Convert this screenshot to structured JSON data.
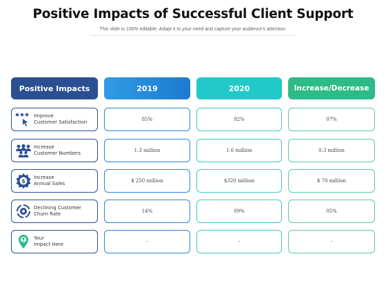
{
  "slide": {
    "title": "Positive Impacts of Successful Client Support",
    "subtitle": "This slide is 100% editable. Adapt it to your need and capture your audience's attention."
  },
  "table": {
    "headers": [
      "Positive Impacts",
      "2019",
      "2020",
      "Increase/Decrease"
    ],
    "rows": [
      {
        "icon": "rating-pointer-icon",
        "label_line1": "Improve",
        "label_line2": "Customer Satisfaction",
        "y2019": "85%",
        "y2020": "92%",
        "change": "07%"
      },
      {
        "icon": "people-group-icon",
        "label_line1": "Increase",
        "label_line2": "Customer Numbers",
        "y2019": "1.3 million",
        "y2020": "1.6 million",
        "change": "0.3 million"
      },
      {
        "icon": "dollar-badge-icon",
        "label_line1": "Increase",
        "label_line2": "Annual Sales",
        "y2019": "$ 250 million",
        "y2020": "$320 million",
        "change": "$ 70 million"
      },
      {
        "icon": "churn-cycle-icon",
        "label_line1": "Declining Customer",
        "label_line2": "Churn Rate",
        "y2019": "14%",
        "y2020": "09%",
        "change": "05%"
      },
      {
        "icon": "lightbulb-pin-icon",
        "label_line1": "Your",
        "label_line2": "Impact Here",
        "y2019": "-",
        "y2020": "-",
        "change": "-"
      }
    ]
  },
  "colors": {
    "navy": "#2a4f92",
    "blue": "#2a84d4",
    "teal": "#22c9c9",
    "green": "#2dbb87"
  }
}
